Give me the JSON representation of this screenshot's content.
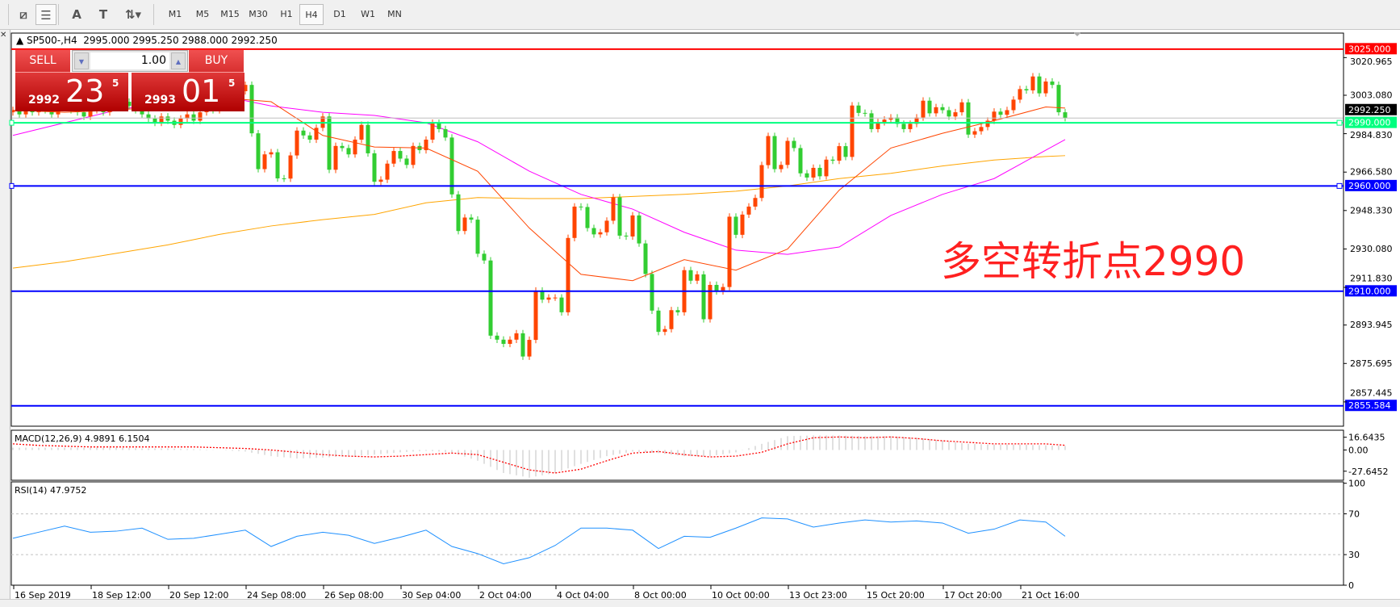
{
  "toolbar": {
    "tools": [
      {
        "name": "expert-icon",
        "glyph": "⧄"
      },
      {
        "name": "fibo-icon",
        "glyph": "☰"
      },
      {
        "name": "text-icon",
        "glyph": "A"
      },
      {
        "name": "text-label-icon",
        "glyph": "T"
      },
      {
        "name": "arrows-icon",
        "glyph": "⇅▾"
      }
    ],
    "timeframes": [
      "M1",
      "M5",
      "M15",
      "M30",
      "H1",
      "H4",
      "D1",
      "W1",
      "MN"
    ],
    "selected_timeframe": "H4"
  },
  "chart": {
    "symbol_header": "SP500-,H4",
    "ohlc_header": "2995.000 2995.250 2988.000 2992.250",
    "annotation": "多空转折点2990",
    "colors": {
      "bull": "#ff4500",
      "bear": "#32cd32",
      "ma_fast": "#ff4500",
      "ma_mid": "#ff00ff",
      "ma_slow": "#ffa500",
      "bid_line": "#c0c0c0"
    }
  },
  "trade_panel": {
    "sell_label": "SELL",
    "buy_label": "BUY",
    "lot": "1.00",
    "sell_price": {
      "prefix": "2992",
      "big": "23",
      "sup": "5"
    },
    "buy_price": {
      "prefix": "2993",
      "big": "01",
      "sup": "5"
    }
  },
  "chart_data": {
    "type": "candlestick",
    "timeframe": "H4",
    "first_open": 2995,
    "closes": [
      2996,
      2994,
      2997,
      2995,
      2998,
      2996,
      2994,
      2997,
      2999,
      2996,
      2995,
      2993,
      2996,
      2998,
      2995,
      2997,
      2999,
      3000,
      2998,
      2996,
      2994,
      2992,
      2990,
      2993,
      2991,
      2989,
      2992,
      2994,
      2991,
      2995,
      2998,
      2996,
      2999,
      3003,
      3006,
      3005,
      3008,
      2985,
      2968,
      2975,
      2976,
      2963.6,
      2963.5,
      2974.5,
      2986.3,
      2984,
      2982,
      2987.6,
      2993,
      2967.7,
      2979,
      2978,
      2975,
      2982,
      2989,
      2975.5,
      2962,
      2963,
      2970.6,
      2976.6,
      2973,
      2970,
      2979,
      2977,
      2982,
      2990,
      2987,
      2983,
      2956,
      2938.6,
      2945,
      2944,
      2927.8,
      2924.6,
      2888.9,
      2887,
      2885,
      2887,
      2890,
      2879,
      2886.9,
      2910.3,
      2906,
      2907,
      2907,
      2900,
      2935.3,
      2950.2,
      2950,
      2940,
      2937,
      2938,
      2943.5,
      2954.6,
      2936.4,
      2936,
      2946,
      2932.7,
      2918.2,
      2900.8,
      2890.7,
      2892,
      2901,
      2900,
      2920,
      2915,
      2918,
      2896.7,
      2913,
      2910,
      2912,
      2945.4,
      2936.8,
      2946.4,
      2950.2,
      2954.3,
      2969.9,
      2983.7,
      2968,
      2970,
      2981.4,
      2978,
      2966,
      2964,
      2968.6,
      2964.6,
      2972.5,
      2972,
      2978.9,
      2973.8,
      2998.2,
      2994.7,
      2994.5,
      2987,
      2990.3,
      2991.5,
      2992.5,
      2989.5,
      2987,
      2989.5,
      2992.5,
      3000.5,
      2994.5,
      2997.4,
      2996,
      2993,
      2995,
      2999.7,
      2984.4,
      2986,
      2988,
      2991,
      2995.3,
      2993.8,
      2996,
      3001,
      3006,
      3005.4,
      3012,
      3004,
      3009.6,
      3008,
      2995,
      2992.25
    ],
    "moving_averages_sampled_every_8_bars": {
      "fast": [
        2996,
        2995,
        2996,
        2998,
        3002,
        3000,
        2984,
        2978.5,
        2978,
        2967,
        2940,
        2918,
        2915,
        2925,
        2920,
        2930,
        2958,
        2978,
        2985,
        2991,
        2997.5,
        2997
      ],
      "mid": [
        2984,
        2990,
        2996,
        3000,
        3003,
        2998,
        2995,
        2993.5,
        2990,
        2981,
        2967,
        2956,
        2949,
        2938,
        2929.5,
        2927.5,
        2931,
        2946,
        2956,
        2963.5,
        2977,
        2982
      ],
      "slow": [
        2921,
        2924,
        2928,
        2932,
        2937,
        2941,
        2944,
        2946.5,
        2952,
        2954.5,
        2954,
        2954,
        2955,
        2956,
        2957.5,
        2960,
        2963.5,
        2966,
        2969.5,
        2972.3,
        2974,
        2974.4
      ]
    },
    "price_axis_ticks": [
      3020.965,
      3003.08,
      2984.83,
      2966.58,
      2948.33,
      2930.08,
      2911.83,
      2893.945,
      2875.695,
      2857.445
    ],
    "price_range": [
      2845.9,
      3032.6
    ],
    "current_price": {
      "value": 2992.25,
      "label": "2992.250"
    },
    "horizontal_lines": [
      {
        "value": 3025.0,
        "label": "3025.000",
        "color": "#ff0000"
      },
      {
        "value": 2990.0,
        "label": "2990.000",
        "color": "#00ff7f"
      },
      {
        "value": 2960.0,
        "label": "2960.000",
        "color": "#0000ff"
      },
      {
        "value": 2910.0,
        "label": "2910.000",
        "color": "#0000ff"
      },
      {
        "value": 2855.584,
        "label": "2855.584",
        "color": "#0000ff"
      }
    ],
    "time_axis_labels": [
      "16 Sep 2019",
      "18 Sep 12:00",
      "20 Sep 12:00",
      "24 Sep 08:00",
      "26 Sep 08:00",
      "30 Sep 04:00",
      "2 Oct 04:00",
      "4 Oct 04:00",
      "8 Oct 00:00",
      "10 Oct 00:00",
      "13 Oct 23:00",
      "15 Oct 20:00",
      "17 Oct 20:00",
      "21 Oct 16:00"
    ]
  },
  "macd": {
    "label": "MACD(12,26,9) 4.9891 6.1504",
    "axis_labels": [
      "16.6435",
      "0.00",
      "-27.6452"
    ],
    "axis_values": [
      16.6435,
      0,
      -27.6452
    ],
    "histogram_sampled_every_4_bars": [
      3,
      3,
      3,
      3,
      3,
      2,
      2,
      1,
      0,
      -2,
      -8,
      -11,
      -10,
      -8,
      -6,
      -3,
      -1,
      -3,
      -14,
      -30,
      -36,
      -30,
      -18,
      -8,
      -2,
      -4,
      -8,
      -8,
      -3,
      8,
      18,
      19,
      19,
      18,
      18,
      16,
      12,
      8,
      7,
      7,
      6,
      4.9891
    ],
    "signal_sampled_every_4_bars": [
      8,
      6,
      5,
      4,
      4,
      4,
      4,
      4,
      3,
      2,
      0,
      -3,
      -6,
      -8,
      -9,
      -8,
      -6,
      -4,
      -6,
      -16,
      -26,
      -30,
      -25,
      -14,
      -4,
      -2,
      -6,
      -9,
      -8,
      -3,
      8,
      16,
      17,
      16,
      17,
      15,
      12,
      10,
      8,
      8,
      8,
      6.1504
    ],
    "histogram_color": "#c0c0c0",
    "signal_color": "#ff0000"
  },
  "rsi": {
    "label": "RSI(14) 47.9752",
    "axis_labels": [
      "100",
      "70",
      "30",
      "0"
    ],
    "levels": [
      70,
      30
    ],
    "values_sampled_every_4_bars": [
      46,
      52,
      58,
      52,
      53,
      56,
      45,
      46,
      50,
      54,
      38,
      48,
      52,
      49,
      41,
      47,
      54,
      38,
      31,
      21,
      27,
      39,
      56,
      56,
      54,
      36,
      48,
      47,
      56,
      66,
      65,
      57,
      61,
      64,
      62,
      63,
      61,
      51,
      55,
      64,
      62,
      47.9752
    ],
    "color": "#1e90ff"
  }
}
